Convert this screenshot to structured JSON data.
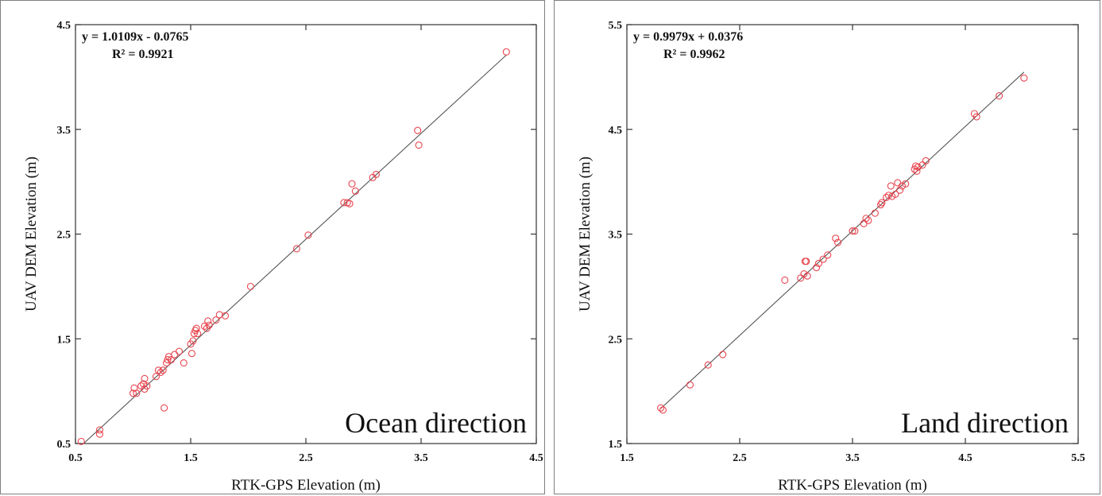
{
  "chart_data": [
    {
      "type": "scatter",
      "xlabel": "RTK-GPS Elevation (m)",
      "ylabel": "UAV DEM Elevation (m)",
      "xlim": [
        0.5,
        4.5
      ],
      "ylim": [
        0.5,
        4.5
      ],
      "xticks": [
        "0.5",
        "1.5",
        "2.5",
        "3.5",
        "4.5"
      ],
      "yticks": [
        "0.5",
        "1.5",
        "2.5",
        "3.5",
        "4.5"
      ],
      "equation": "y = 1.0109x - 0.0765",
      "r2": "R² = 0.9921",
      "annotation": "Ocean direction",
      "fit": {
        "slope": 1.0109,
        "intercept": -0.0765
      },
      "marker_color": "#e8454f",
      "line_color": "#555555",
      "points": [
        [
          0.55,
          0.52
        ],
        [
          0.71,
          0.59
        ],
        [
          0.71,
          0.63
        ],
        [
          1.0,
          0.98
        ],
        [
          1.01,
          1.03
        ],
        [
          1.03,
          0.98
        ],
        [
          1.07,
          1.05
        ],
        [
          1.09,
          1.07
        ],
        [
          1.1,
          1.02
        ],
        [
          1.1,
          1.12
        ],
        [
          1.12,
          1.05
        ],
        [
          1.2,
          1.14
        ],
        [
          1.22,
          1.2
        ],
        [
          1.24,
          1.18
        ],
        [
          1.26,
          1.2
        ],
        [
          1.27,
          0.84
        ],
        [
          1.29,
          1.27
        ],
        [
          1.3,
          1.3
        ],
        [
          1.31,
          1.33
        ],
        [
          1.33,
          1.3
        ],
        [
          1.36,
          1.35
        ],
        [
          1.4,
          1.38
        ],
        [
          1.44,
          1.27
        ],
        [
          1.5,
          1.45
        ],
        [
          1.51,
          1.36
        ],
        [
          1.52,
          1.48
        ],
        [
          1.53,
          1.55
        ],
        [
          1.54,
          1.58
        ],
        [
          1.55,
          1.6
        ],
        [
          1.56,
          1.55
        ],
        [
          1.62,
          1.62
        ],
        [
          1.64,
          1.6
        ],
        [
          1.65,
          1.67
        ],
        [
          1.66,
          1.63
        ],
        [
          1.72,
          1.68
        ],
        [
          1.75,
          1.73
        ],
        [
          1.8,
          1.72
        ],
        [
          2.02,
          2.0
        ],
        [
          2.42,
          2.36
        ],
        [
          2.52,
          2.49
        ],
        [
          2.83,
          2.8
        ],
        [
          2.86,
          2.8
        ],
        [
          2.88,
          2.79
        ],
        [
          2.9,
          2.98
        ],
        [
          2.93,
          2.91
        ],
        [
          3.08,
          3.04
        ],
        [
          3.11,
          3.07
        ],
        [
          3.47,
          3.49
        ],
        [
          3.48,
          3.35
        ],
        [
          4.24,
          4.24
        ]
      ]
    },
    {
      "type": "scatter",
      "xlabel": "RTK-GPS Elevation (m)",
      "ylabel": "UAV DEM Elevation (m)",
      "xlim": [
        1.5,
        5.5
      ],
      "ylim": [
        1.5,
        5.5
      ],
      "xticks": [
        "1.5",
        "2.5",
        "3.5",
        "4.5",
        "5.5"
      ],
      "yticks": [
        "1.5",
        "2.5",
        "3.5",
        "4.5",
        "5.5"
      ],
      "equation": "y = 0.9979x + 0.0376",
      "r2": "R² = 0.9962",
      "annotation": "Land direction",
      "fit": {
        "slope": 0.9979,
        "intercept": 0.0376
      },
      "marker_color": "#e8454f",
      "line_color": "#555555",
      "points": [
        [
          1.8,
          1.84
        ],
        [
          1.82,
          1.82
        ],
        [
          2.06,
          2.06
        ],
        [
          2.22,
          2.25
        ],
        [
          2.35,
          2.35
        ],
        [
          2.9,
          3.06
        ],
        [
          3.04,
          3.08
        ],
        [
          3.07,
          3.12
        ],
        [
          3.08,
          3.24
        ],
        [
          3.09,
          3.24
        ],
        [
          3.1,
          3.1
        ],
        [
          3.18,
          3.18
        ],
        [
          3.2,
          3.22
        ],
        [
          3.24,
          3.26
        ],
        [
          3.28,
          3.3
        ],
        [
          3.35,
          3.46
        ],
        [
          3.37,
          3.42
        ],
        [
          3.5,
          3.53
        ],
        [
          3.52,
          3.53
        ],
        [
          3.6,
          3.6
        ],
        [
          3.62,
          3.65
        ],
        [
          3.64,
          3.63
        ],
        [
          3.7,
          3.7
        ],
        [
          3.75,
          3.78
        ],
        [
          3.76,
          3.8
        ],
        [
          3.8,
          3.85
        ],
        [
          3.82,
          3.87
        ],
        [
          3.84,
          3.96
        ],
        [
          3.85,
          3.86
        ],
        [
          3.88,
          3.88
        ],
        [
          3.9,
          3.99
        ],
        [
          3.92,
          3.92
        ],
        [
          3.94,
          3.96
        ],
        [
          3.97,
          3.98
        ],
        [
          4.05,
          4.12
        ],
        [
          4.06,
          4.15
        ],
        [
          4.07,
          4.1
        ],
        [
          4.08,
          4.14
        ],
        [
          4.12,
          4.16
        ],
        [
          4.15,
          4.2
        ],
        [
          4.58,
          4.65
        ],
        [
          4.6,
          4.62
        ],
        [
          4.8,
          4.82
        ],
        [
          5.02,
          4.99
        ]
      ]
    }
  ]
}
